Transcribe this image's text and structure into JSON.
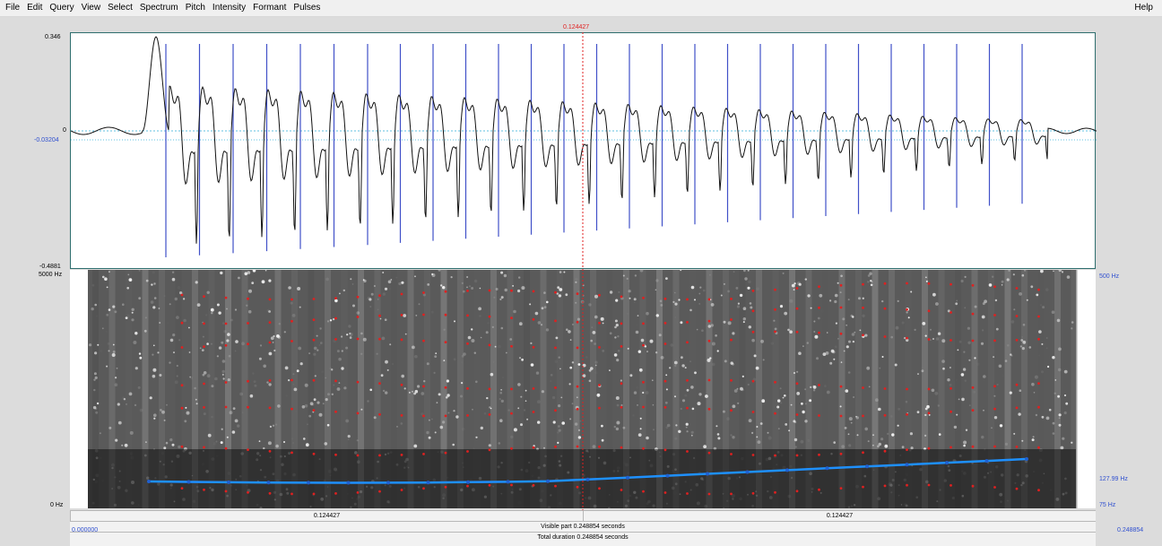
{
  "menu": {
    "items": [
      "File",
      "Edit",
      "Query",
      "View",
      "Select",
      "Spectrum",
      "Pitch",
      "Intensity",
      "Formant",
      "Pulses"
    ],
    "help": "Help"
  },
  "cursor": {
    "time_label": "0.124427"
  },
  "waveform": {
    "y_max_label": "0.346",
    "y_zero_label": "0",
    "y_cursor_label": "-0.03204",
    "y_min_label": "-0.4881"
  },
  "spectrogram": {
    "freq_top_label": "5000 Hz",
    "freq_bottom_label": "0 Hz",
    "pitch_top_label": "500 Hz",
    "pitch_value_label": "127.99 Hz",
    "pitch_bottom_label": "75 Hz"
  },
  "time_bar": {
    "left_selection_label": "0.124427",
    "right_selection_label": "0.124427",
    "start_label": "0.000000",
    "visible_part_label": "Visible part 0.248854 seconds",
    "end_label": "0.248854",
    "total_duration_label": "Total duration 0.248854 seconds"
  },
  "colors": {
    "waveform": "#111111",
    "pulses": "#4050c8",
    "cursor": "#e02020",
    "pitch": "#1e90ff",
    "formants": "#e02020"
  }
}
